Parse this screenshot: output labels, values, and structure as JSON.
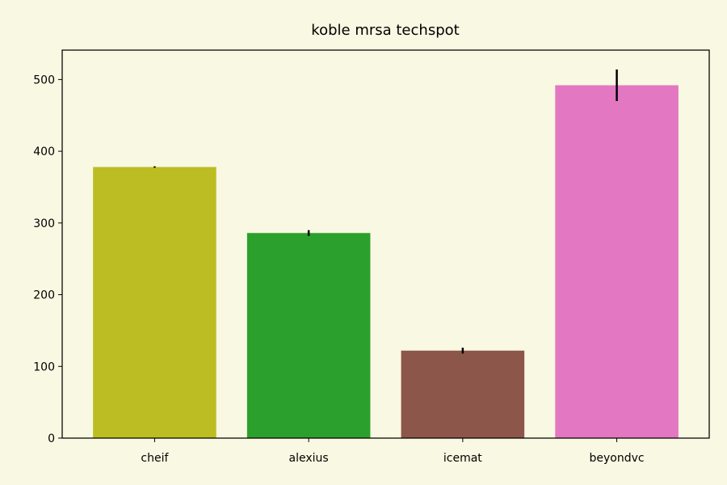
{
  "chart_data": {
    "type": "bar",
    "title": "koble mrsa techspot",
    "xlabel": "",
    "ylabel": "",
    "categories": [
      "cheif",
      "alexius",
      "icemat",
      "beyondvc"
    ],
    "values": [
      378,
      286,
      122,
      492
    ],
    "errors": [
      1,
      4,
      4,
      22
    ],
    "colors": [
      "#bcbd22",
      "#2ca02c",
      "#8c564b",
      "#e377c2"
    ],
    "ylim": [
      0,
      541
    ],
    "yticks": [
      0,
      100,
      200,
      300,
      400,
      500
    ],
    "grid": false,
    "background": "#f9f8e2"
  }
}
